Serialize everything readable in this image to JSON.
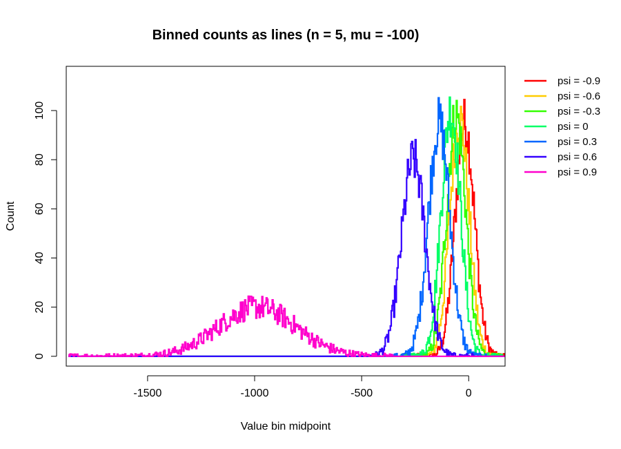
{
  "chart_data": {
    "type": "line",
    "title": "Binned counts as lines (n = 5, mu = -100)",
    "xlabel": "Value bin midpoint",
    "ylabel": "Count",
    "xlim": [
      -1880,
      170
    ],
    "ylim": [
      -4,
      118
    ],
    "grid": false,
    "legend_position": "right, outside plot",
    "xticks": [
      {
        "value": -1500,
        "label": "-1500"
      },
      {
        "value": -1000,
        "label": "-1000"
      },
      {
        "value": -500,
        "label": "-500"
      },
      {
        "value": 0,
        "label": "0"
      }
    ],
    "yticks": [
      {
        "value": 0,
        "label": "0"
      },
      {
        "value": 20,
        "label": "20"
      },
      {
        "value": 40,
        "label": "40"
      },
      {
        "value": 60,
        "label": "60"
      },
      {
        "value": 80,
        "label": "80"
      },
      {
        "value": 100,
        "label": "100"
      }
    ],
    "x_range": [
      -1870,
      170
    ],
    "series": [
      {
        "name": "psi = -0.9",
        "color": "#ff0000",
        "center": -20,
        "spread": 45,
        "peak": 95,
        "support": [
          -250,
          165
        ]
      },
      {
        "name": "psi = -0.6",
        "color": "#ffcc00",
        "center": -45,
        "spread": 45,
        "peak": 97,
        "support": [
          -280,
          165
        ]
      },
      {
        "name": "psi = -0.3",
        "color": "#33ff00",
        "center": -60,
        "spread": 45,
        "peak": 98,
        "support": [
          -300,
          160
        ]
      },
      {
        "name": "psi = 0",
        "color": "#00ff66",
        "center": -85,
        "spread": 45,
        "peak": 100,
        "support": [
          -320,
          150
        ]
      },
      {
        "name": "psi = 0.3",
        "color": "#0066ff",
        "center": -140,
        "spread": 50,
        "peak": 95,
        "support": [
          -380,
          80
        ]
      },
      {
        "name": "psi = 0.6",
        "color": "#3300ff",
        "center": -260,
        "spread": 55,
        "peak": 80,
        "support": [
          -480,
          20
        ]
      },
      {
        "name": "psi = 0.9",
        "color": "#ff00cc",
        "center": -990,
        "spread": 180,
        "peak": 20,
        "support": [
          -1870,
          -350
        ]
      }
    ]
  }
}
